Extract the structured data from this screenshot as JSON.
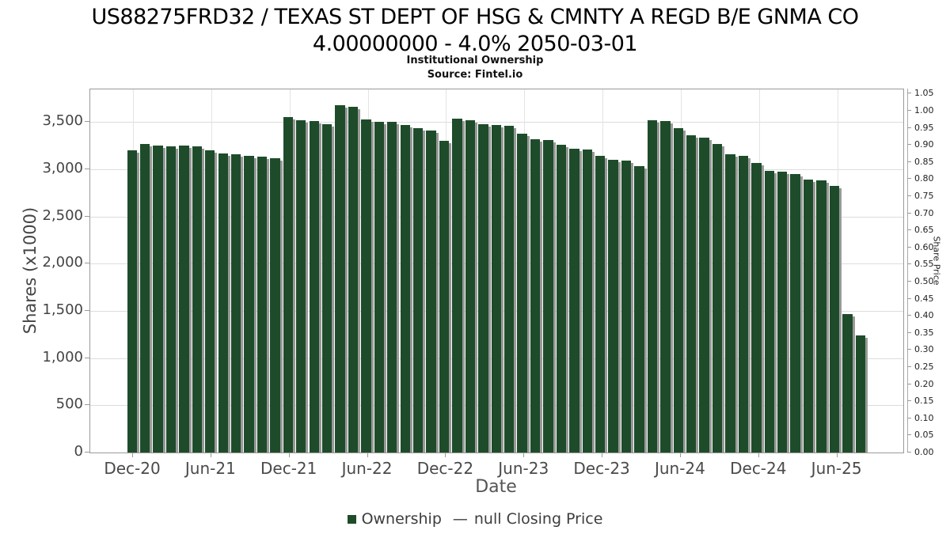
{
  "title": {
    "line1": "US88275FRD32 / TEXAS ST DEPT OF HSG & CMNTY A REGD B/E GNMA CO",
    "line2": "4.00000000 - 4.0% 2050-03-01"
  },
  "subtitle": "Institutional Ownership",
  "source": "Source: Fintel.io",
  "axes": {
    "left": {
      "label": "Shares (x1000)",
      "tick_labels": [
        "0",
        "500",
        "1,000",
        "1,500",
        "2,000",
        "2,500",
        "3,000",
        "3,500"
      ],
      "tick_values": [
        0,
        500,
        1000,
        1500,
        2000,
        2500,
        3000,
        3500
      ]
    },
    "right": {
      "label": "Share Price",
      "tick_labels": [
        "0.00",
        "0.05",
        "0.10",
        "0.15",
        "0.20",
        "0.25",
        "0.30",
        "0.35",
        "0.40",
        "0.45",
        "0.50",
        "0.55",
        "0.60",
        "0.65",
        "0.70",
        "0.75",
        "0.80",
        "0.85",
        "0.90",
        "0.95",
        "1.00",
        "1.05"
      ],
      "tick_values": [
        0,
        0.05,
        0.1,
        0.15,
        0.2,
        0.25,
        0.3,
        0.35,
        0.4,
        0.45,
        0.5,
        0.55,
        0.6,
        0.65,
        0.7,
        0.75,
        0.8,
        0.85,
        0.9,
        0.95,
        1.0,
        1.05
      ]
    },
    "x": {
      "label": "Date",
      "tick_labels": [
        "Dec-20",
        "Jun-21",
        "Dec-21",
        "Jun-22",
        "Dec-22",
        "Jun-23",
        "Dec-23",
        "Jun-24",
        "Dec-24",
        "Jun-25"
      ]
    }
  },
  "legend": {
    "ownership_label": "Ownership",
    "price_marker": "—",
    "price_label": "null Closing Price"
  },
  "chart_data": {
    "type": "bar",
    "title": "US88275FRD32 / TEXAS ST DEPT OF HSG & CMNTY A REGD B/E GNMA CO 4.00000000 - 4.0% 2050-03-01 — Institutional Ownership (Source: Fintel.io)",
    "xlabel": "Date",
    "ylabel": "Shares (x1000)",
    "ylabel_right": "Share Price",
    "ylim_left": [
      0,
      3845
    ],
    "ylim_right": [
      0,
      1.0625
    ],
    "grid": true,
    "legend_position": "bottom",
    "bar_color": "#1e4c2a",
    "bar_shadow_color": "#999999",
    "categories": [
      "Dec-20",
      "Jan-21",
      "Feb-21",
      "Mar-21",
      "Apr-21",
      "May-21",
      "Jun-21",
      "Jul-21",
      "Aug-21",
      "Sep-21",
      "Oct-21",
      "Nov-21",
      "Dec-21",
      "Jan-22",
      "Feb-22",
      "Mar-22",
      "Apr-22",
      "May-22",
      "Jun-22",
      "Jul-22",
      "Aug-22",
      "Sep-22",
      "Oct-22",
      "Nov-22",
      "Dec-22",
      "Jan-23",
      "Feb-23",
      "Mar-23",
      "Apr-23",
      "May-23",
      "Jun-23",
      "Jul-23",
      "Aug-23",
      "Sep-23",
      "Oct-23",
      "Nov-23",
      "Dec-23",
      "Jan-24",
      "Feb-24",
      "Mar-24",
      "Apr-24",
      "May-24",
      "Jun-24",
      "Jul-24",
      "Aug-24",
      "Sep-24",
      "Oct-24",
      "Nov-24",
      "Dec-24",
      "Jan-25",
      "Feb-25",
      "Mar-25",
      "Apr-25",
      "May-25",
      "Jun-25",
      "Jul-25",
      "Aug-25"
    ],
    "values": [
      3200,
      3270,
      3250,
      3245,
      3250,
      3245,
      3200,
      3170,
      3155,
      3145,
      3130,
      3115,
      3550,
      3515,
      3510,
      3480,
      3675,
      3660,
      3530,
      3505,
      3500,
      3470,
      3435,
      3410,
      3300,
      3535,
      3520,
      3480,
      3470,
      3460,
      3375,
      3320,
      3310,
      3255,
      3220,
      3210,
      3145,
      3100,
      3090,
      3030,
      3520,
      3510,
      3435,
      3355,
      3330,
      3265,
      3160,
      3140,
      3065,
      2985,
      2975,
      2945,
      2890,
      2880,
      2820,
      1465,
      1240
    ],
    "secondary_series": {
      "name": "null Closing Price",
      "type": "line",
      "values": []
    }
  }
}
